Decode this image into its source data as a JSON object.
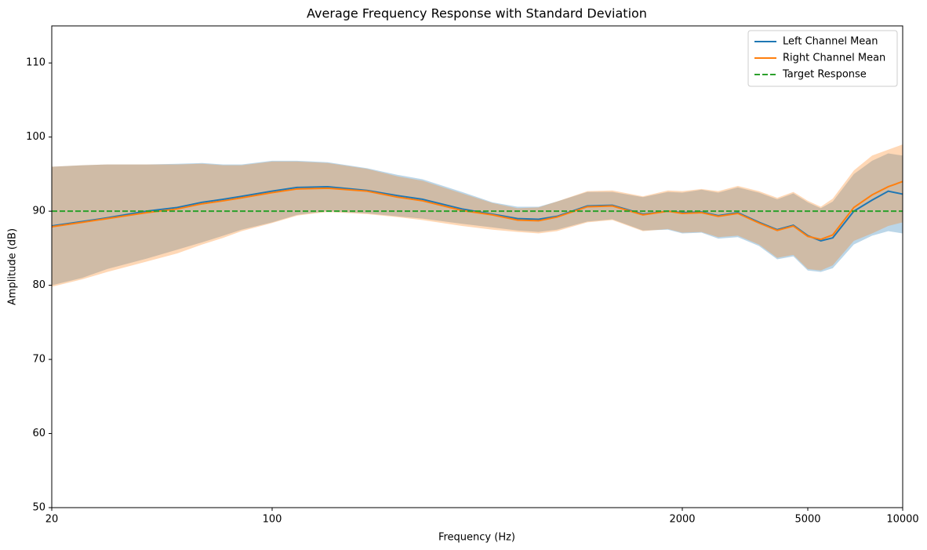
{
  "chart_data": {
    "type": "line",
    "title": "Average Frequency Response with Standard Deviation",
    "x_label": "Frequency (Hz)",
    "y_label": "Amplitude (dB)",
    "x_scale": "log",
    "xlim": [
      20,
      10000
    ],
    "ylim": [
      50,
      115
    ],
    "xticks": [
      20,
      100,
      2000,
      5000,
      10000
    ],
    "yticks": [
      50,
      60,
      70,
      80,
      90,
      100,
      110
    ],
    "legend": "upper right",
    "x": [
      20,
      25,
      30,
      40,
      50,
      60,
      70,
      80,
      100,
      120,
      150,
      200,
      250,
      300,
      400,
      500,
      600,
      700,
      800,
      1000,
      1200,
      1500,
      1800,
      2000,
      2300,
      2600,
      3000,
      3500,
      4000,
      4500,
      5000,
      5500,
      6000,
      7000,
      8000,
      9000,
      10000
    ],
    "series": [
      {
        "name": "Left Channel Mean",
        "color": "#1f77b4",
        "values": [
          88,
          88.6,
          89.1,
          90.0,
          90.5,
          91.2,
          91.6,
          92.0,
          92.7,
          93.2,
          93.3,
          92.8,
          92.1,
          91.6,
          90.3,
          89.6,
          89.0,
          88.9,
          89.3,
          90.7,
          90.8,
          89.6,
          90.0,
          89.8,
          89.9,
          89.4,
          89.8,
          88.5,
          87.5,
          88.1,
          86.7,
          86.0,
          86.4,
          90.0,
          91.5,
          92.7,
          92.3
        ],
        "lower": [
          80,
          81,
          82.2,
          83.6,
          84.8,
          85.8,
          86.7,
          87.5,
          88.5,
          89.5,
          90.0,
          89.7,
          89.3,
          89.0,
          88.3,
          87.8,
          87.4,
          87.2,
          87.5,
          88.6,
          88.9,
          87.4,
          87.5,
          87.0,
          87.1,
          86.3,
          86.5,
          85.3,
          83.5,
          83.9,
          82.0,
          81.8,
          82.3,
          85.5,
          86.7,
          87.3,
          87.0
        ],
        "upper": [
          96,
          96.2,
          96.3,
          96.3,
          96.4,
          96.5,
          96.3,
          96.3,
          96.8,
          96.8,
          96.6,
          95.8,
          94.9,
          94.3,
          92.6,
          91.2,
          90.6,
          90.6,
          91.3,
          92.6,
          92.6,
          91.9,
          92.6,
          92.5,
          92.9,
          92.5,
          93.2,
          92.5,
          91.6,
          92.4,
          91.2,
          90.4,
          91.3,
          95.0,
          96.8,
          97.8,
          97.5
        ]
      },
      {
        "name": "Right Channel Mean",
        "color": "#ff7f0e",
        "values": [
          87.9,
          88.5,
          89.0,
          89.8,
          90.3,
          91.0,
          91.4,
          91.8,
          92.5,
          93.0,
          93.1,
          92.7,
          91.9,
          91.4,
          90.1,
          89.5,
          88.8,
          88.7,
          89.2,
          90.6,
          90.7,
          89.5,
          90.0,
          89.7,
          89.8,
          89.3,
          89.7,
          88.4,
          87.4,
          88.0,
          86.6,
          86.2,
          86.8,
          90.5,
          92.2,
          93.3,
          94.0
        ],
        "lower": [
          79.8,
          80.8,
          81.8,
          83.2,
          84.3,
          85.5,
          86.4,
          87.3,
          88.4,
          89.4,
          89.9,
          89.6,
          89.2,
          88.8,
          88.0,
          87.5,
          87.2,
          87.0,
          87.3,
          88.5,
          88.8,
          87.3,
          87.6,
          87.1,
          87.2,
          86.5,
          86.7,
          85.5,
          83.7,
          84.1,
          82.2,
          82.0,
          82.7,
          86.0,
          87.0,
          88.0,
          88.5
        ],
        "upper": [
          96,
          96.2,
          96.3,
          96.3,
          96.3,
          96.4,
          96.2,
          96.2,
          96.7,
          96.7,
          96.5,
          95.7,
          94.7,
          94.1,
          92.4,
          91.1,
          90.4,
          90.5,
          91.3,
          92.7,
          92.8,
          92.0,
          92.8,
          92.7,
          93.0,
          92.7,
          93.4,
          92.7,
          91.8,
          92.6,
          91.4,
          90.6,
          91.7,
          95.5,
          97.5,
          98.3,
          99.0
        ]
      },
      {
        "name": "Target Response",
        "color": "#2ca02c",
        "value": 90,
        "linestyle": "dashed"
      }
    ]
  }
}
